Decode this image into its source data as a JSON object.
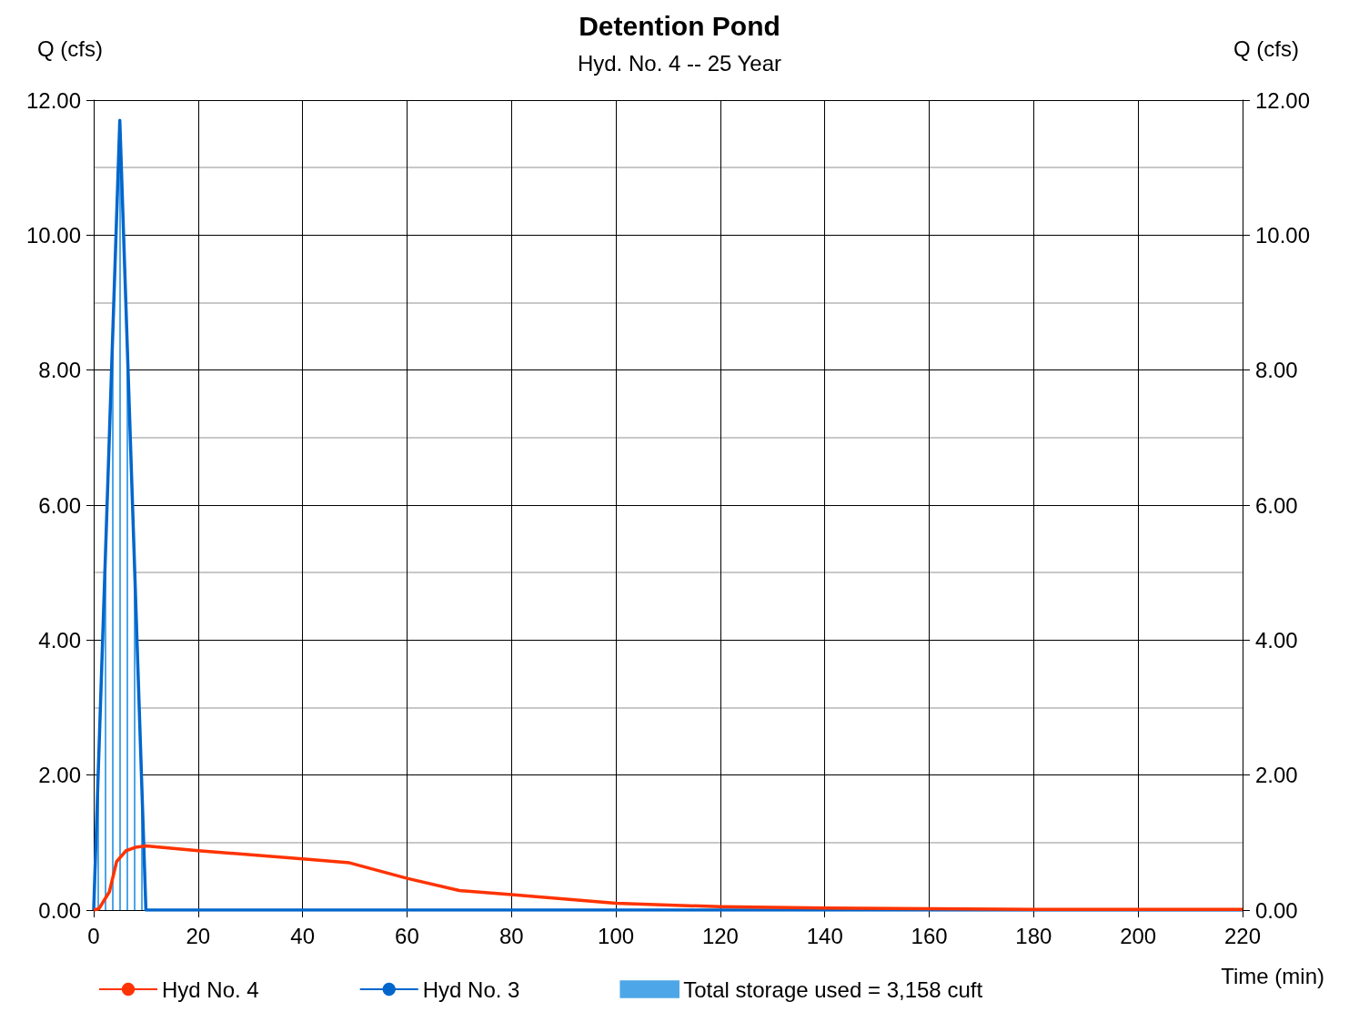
{
  "chart_data": {
    "type": "line",
    "title": "Detention Pond",
    "subtitle": "Hyd. No. 4 -- 25 Year",
    "xlabel": "Time (min)",
    "ylabel": "Q (cfs)",
    "y2label": "Q (cfs)",
    "xlim": [
      0,
      220
    ],
    "xticks": [
      0,
      20,
      40,
      60,
      80,
      100,
      120,
      140,
      160,
      180,
      200,
      220
    ],
    "ylim": [
      0,
      12
    ],
    "yticks": [
      {
        "value": 0,
        "label": "0.00"
      },
      {
        "value": 2,
        "label": "2.00"
      },
      {
        "value": 4,
        "label": "4.00"
      },
      {
        "value": 6,
        "label": "6.00"
      },
      {
        "value": 8,
        "label": "8.00"
      },
      {
        "value": 10,
        "label": "10.00"
      },
      {
        "value": 12,
        "label": "12.00"
      }
    ],
    "y2lim": [
      0,
      12
    ],
    "y2ticks": [
      {
        "value": 0,
        "label": "0.00"
      },
      {
        "value": 2,
        "label": "2.00"
      },
      {
        "value": 4,
        "label": "4.00"
      },
      {
        "value": 6,
        "label": "6.00"
      },
      {
        "value": 8,
        "label": "8.00"
      },
      {
        "value": 10,
        "label": "10.00"
      },
      {
        "value": 12,
        "label": "12.00"
      }
    ],
    "grid": true,
    "legend": "bottom",
    "marker": "none",
    "series": [
      {
        "name": "Hyd No. 4",
        "color": "#ff3300",
        "x": [
          0,
          1,
          3,
          4.4,
          6.2,
          8,
          10,
          20,
          40,
          49,
          60,
          70,
          80,
          100,
          120,
          140,
          160,
          180,
          200,
          220
        ],
        "values": [
          0,
          0.02,
          0.27,
          0.72,
          0.88,
          0.93,
          0.95,
          0.88,
          0.76,
          0.7,
          0.47,
          0.29,
          0.23,
          0.1,
          0.05,
          0.03,
          0.02,
          0.01,
          0.01,
          0.01
        ]
      },
      {
        "name": "Hyd No. 3",
        "color": "#0066cc",
        "x": [
          0,
          5,
          10,
          220
        ],
        "values": [
          0,
          11.7,
          0,
          0
        ]
      },
      {
        "name": "Total storage used = 3,158 cuft",
        "type": "area",
        "color": "#4da6e8",
        "x": [
          0,
          5,
          10
        ],
        "values": [
          0,
          11.7,
          0
        ]
      }
    ]
  }
}
